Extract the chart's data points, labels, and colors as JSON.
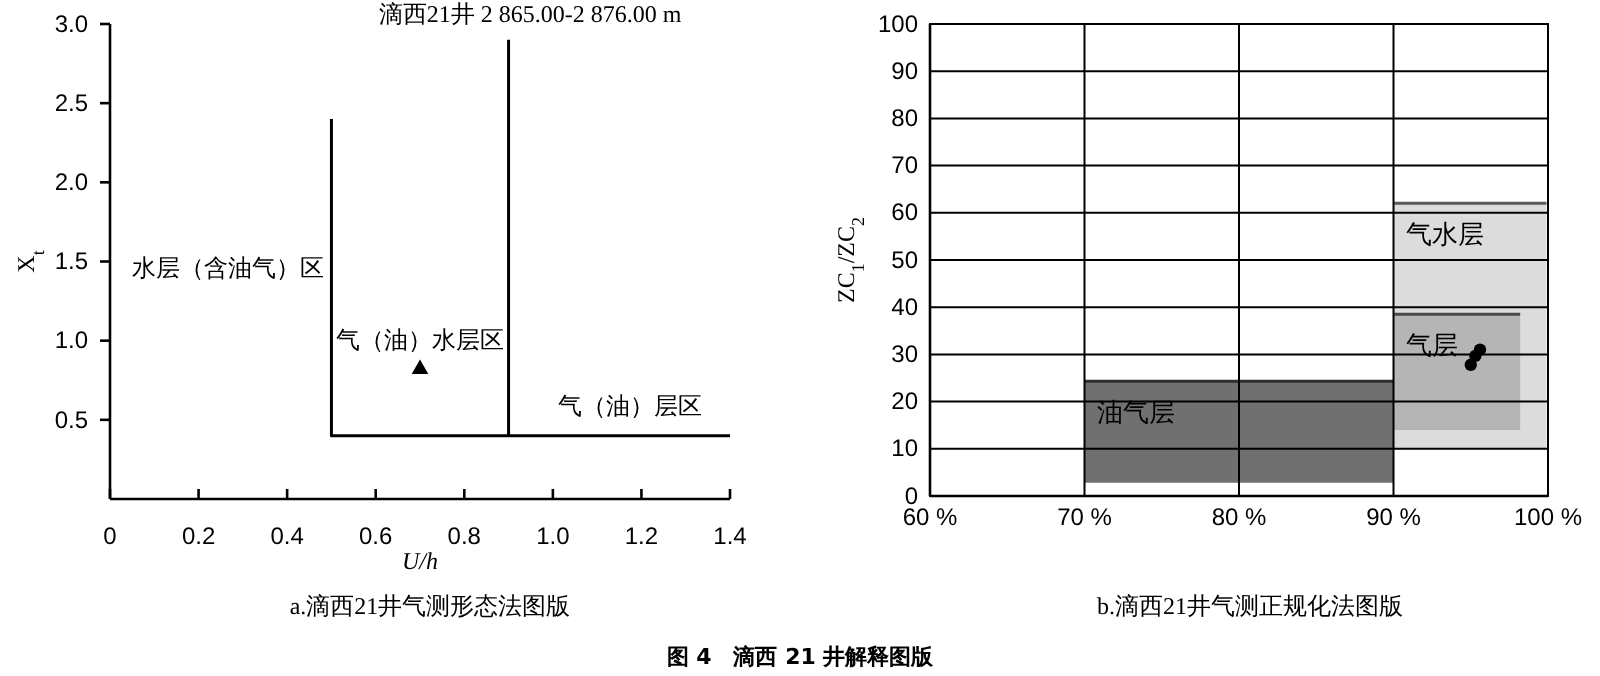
{
  "chart_data": [
    {
      "type": "line",
      "title": "滴西21井  2 865.00-2 876.00 m",
      "xlabel": "U/h",
      "ylabel": "X$_{t}$",
      "xlim": [
        0,
        1.4
      ],
      "ylim": [
        0,
        3
      ],
      "xticks": [
        {
          "value": 0,
          "label": "0"
        },
        0.2,
        0.4,
        0.6,
        0.8,
        {
          "value": 1,
          "label": "1.0"
        },
        1.2,
        1.4
      ],
      "yticks": [
        0.5,
        {
          "value": 1,
          "label": "1.0"
        },
        1.5,
        {
          "value": 2,
          "label": "2.0"
        },
        2.5,
        {
          "value": 3,
          "label": "3.0"
        }
      ],
      "grid": false,
      "line_style": "solid",
      "series": [
        {
          "color": "#000000",
          "x": [
            0.5,
            0.5,
            1.4
          ],
          "values": [
            2.4,
            0.4,
            0.4
          ]
        },
        {
          "color": "#000000",
          "x": [
            0.9,
            0.9
          ],
          "values": [
            2.9,
            0.4
          ]
        },
        {
          "type": "scatter",
          "marker": "triangle",
          "color": "#000000",
          "x": [
            0.7
          ],
          "values": [
            0.82
          ]
        }
      ],
      "annotations": [
        "水层（含油气）区",
        "气（油）水层区",
        "气（油）层区",
        "a.滴西21井气测形态法图版",
        "图 4　滴西 21 井解释图版"
      ]
    },
    {
      "type": "line",
      "ylabel": "ZC$_{1}$/ZC$_{2}$",
      "xlim": [
        60,
        100
      ],
      "ylim": [
        0,
        100
      ],
      "xticks": [
        {
          "value": 60,
          "label": "60 %"
        },
        {
          "value": 70,
          "label": "70 %"
        },
        {
          "value": 80,
          "label": "80 %"
        },
        {
          "value": 90,
          "label": "90 %"
        },
        {
          "value": 100,
          "label": "100 %"
        }
      ],
      "yticks": [
        0,
        10,
        20,
        30,
        40,
        50,
        60,
        70,
        80,
        90,
        100
      ],
      "grid": true,
      "series": [
        {
          "name": "气水层",
          "color": "#5a5a5a",
          "x": [
            90,
            99.9
          ],
          "values": [
            62,
            62
          ],
          "lower": [
            10,
            10
          ],
          "upper": [
            62,
            62
          ]
        },
        {
          "name": "气层",
          "color": "#4a4a4a",
          "x": [
            90,
            98.2
          ],
          "values": [
            38.5,
            38.5
          ],
          "lower": [
            14,
            14
          ],
          "upper": [
            38.5,
            38.5
          ]
        },
        {
          "name": "油气层",
          "color": "#2e2e2e",
          "x": [
            70,
            90
          ],
          "values": [
            24.3,
            24.3
          ],
          "lower": [
            2.8,
            2.8
          ],
          "upper": [
            24.3,
            24.3
          ]
        },
        {
          "type": "scatter",
          "marker": "circle",
          "color": "#000000",
          "x": [
            95.0,
            95.3,
            95.6
          ],
          "values": [
            27.8,
            29.7,
            31
          ]
        }
      ],
      "annotations": [
        "b.滴西21井气测正规化法图版"
      ]
    }
  ]
}
